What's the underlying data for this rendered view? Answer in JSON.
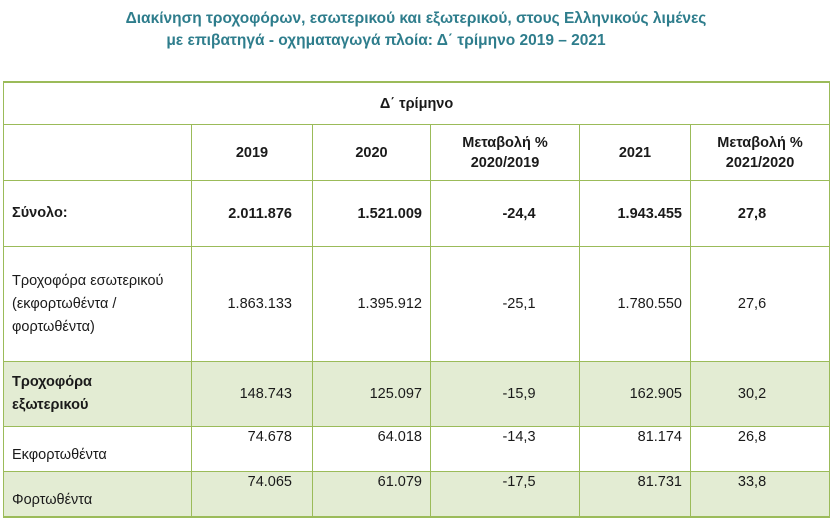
{
  "title": {
    "line1": "Διακίνηση τροχοφόρων, εσωτερικού και εξωτερικού, στους Ελληνικούς λιμένες",
    "line2": "με επιβατηγά - οχηματαγωγά πλοία: Δ΄ τρίμηνο 2019 – 2021"
  },
  "table": {
    "quarter_header": "Δ΄ τρίμηνο",
    "columns": [
      "2019",
      "2020",
      "Μεταβολή % 2020/2019",
      "2021",
      "Μεταβολή % 2021/2020"
    ],
    "rows": [
      {
        "label": "Σύνολο:",
        "values": [
          "2.011.876",
          "1.521.009",
          "-24,4",
          "1.943.455",
          "27,8"
        ]
      },
      {
        "label": "Τροχοφόρα εσωτερικού (εκφορτωθέντα / φορτωθέντα)",
        "values": [
          "1.863.133",
          "1.395.912",
          "-25,1",
          "1.780.550",
          "27,6"
        ]
      },
      {
        "label": "Τροχοφόρα εξωτερικού",
        "values": [
          "148.743",
          "125.097",
          "-15,9",
          "162.905",
          "30,2"
        ]
      },
      {
        "label": "Εκφορτωθέντα",
        "values": [
          "74.678",
          "64.018",
          "-14,3",
          "81.174",
          "26,8"
        ]
      },
      {
        "label": "Φορτωθέντα",
        "values": [
          "74.065",
          "61.079",
          "-17,5",
          "81.731",
          "33,8"
        ]
      }
    ]
  }
}
